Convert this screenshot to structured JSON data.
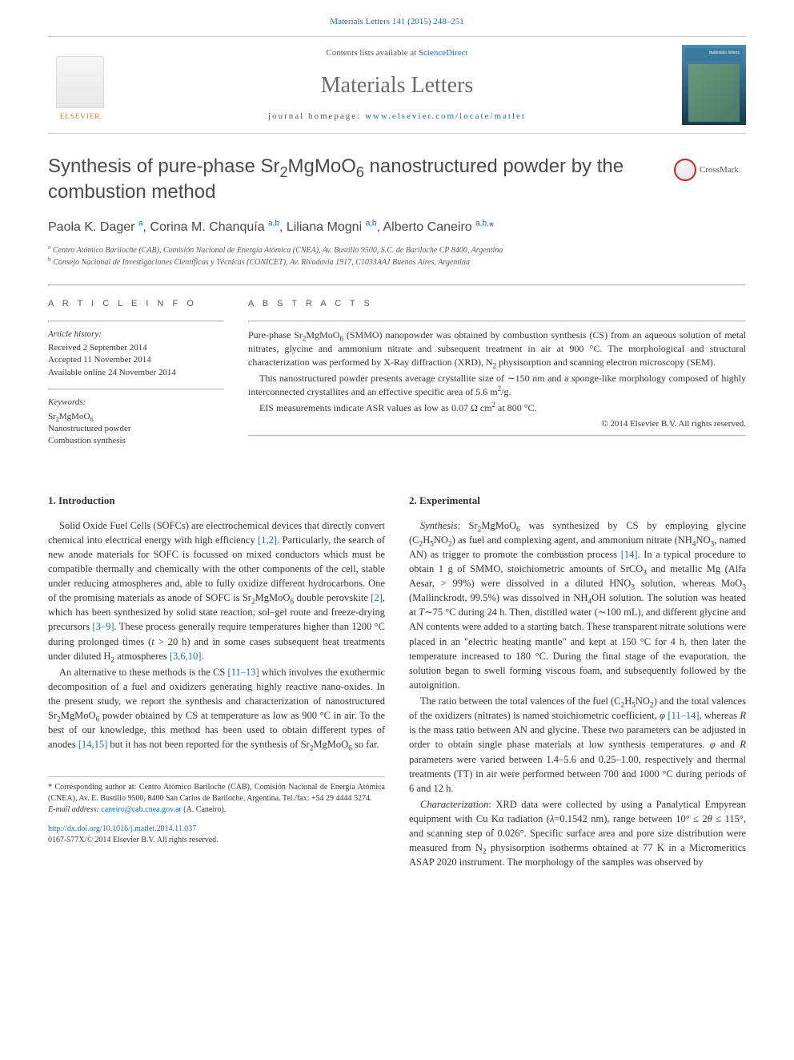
{
  "top_link": {
    "prefix": "",
    "journal_ref": "Materials Letters 141 (2015) 248–251"
  },
  "header": {
    "elsevier_label": "ELSEVIER",
    "contents_prefix": "Contents lists available at ",
    "contents_link": "ScienceDirect",
    "journal_name": "Materials Letters",
    "homepage_prefix": "journal homepage: ",
    "homepage_url": "www.elsevier.com/locate/matlet",
    "cover_label": "materials letters"
  },
  "title_html": "Synthesis of pure-phase Sr<sub>2</sub>MgMoO<sub>6</sub> nanostructured powder by the combustion method",
  "crossmark_label": "CrossMark",
  "authors_html": "Paola K. Dager <sup class='ref-link'>a</sup>, Corina M. Chanquía <sup class='ref-link'>a,b</sup>, Liliana Mogni <sup class='ref-link'>a,b</sup>, Alberto Caneiro <sup class='ref-link'>a,b,</sup><a>*</a>",
  "affiliations": [
    {
      "tag": "a",
      "text": "Centro Atómico Bariloche (CAB), Comisión Nacional de Energía Atómica (CNEA), Av. Bustillo 9500, S.C. de Bariloche CP 8400, Argentina"
    },
    {
      "tag": "b",
      "text": "Consejo Nacional de Investigaciones Científicas y Técnicas (CONICET), Av. Rivadavia 1917, C1033AAJ Buenos Aires, Argentina"
    }
  ],
  "article_info": {
    "heading": "A R T I C L E  I N F O",
    "history_label": "Article history:",
    "history": [
      "Received 2 September 2014",
      "Accepted 11 November 2014",
      "Available online 24 November 2014"
    ],
    "keywords_label": "Keywords:",
    "keywords": [
      "Sr<sub>2</sub>MgMoO<sub>6</sub>",
      "Nanostructured powder",
      "Combustion synthesis"
    ]
  },
  "abstract": {
    "heading": "A B S T R A C T S",
    "paragraphs_html": [
      "Pure-phase Sr<sub>2</sub>MgMoO<sub>6</sub> (SMMO) nanopowder was obtained by combustion synthesis (CS) from an aqueous solution of metal nitrates, glycine and ammonium nitrate and subsequent treatment in air at 900 °C. The morphological and structural characterization was performed by X-Ray diffraction (XRD), N<sub>2</sub> physisorption and scanning electron microscopy (SEM).",
      "This nanostructured powder presents average crystallite size of ∼150 nm and a sponge-like morphology composed of highly interconnected crystallites and an effective specific area of 5.6 m<sup>2</sup>/g.",
      "EIS measurements indicate ASR values as low as 0.07 Ω cm<sup>2</sup> at 800 °C."
    ],
    "copyright": "© 2014 Elsevier B.V. All rights reserved."
  },
  "sections": {
    "intro_head": "1.  Introduction",
    "intro_paras_html": [
      "Solid Oxide Fuel Cells (SOFCs) are electrochemical devices that directly convert chemical into electrical energy with high efficiency <a>[1,2]</a>. Particularly, the search of new anode materials for SOFC is focussed on mixed conductors which must be compatible thermally and chemically with the other components of the cell, stable under reducing atmospheres and, able to fully oxidize different hydrocarbons. One of the promising materials as anode of SOFC is Sr<sub>2</sub>MgMoO<sub>6</sub> double perovskite <a>[2]</a>, which has been synthesized by solid state reaction, sol–gel route and freeze-drying precursors <a>[3–9]</a>. These process generally require temperatures higher than 1200 °C during prolonged times (<span class='ital'>t</span> &gt; 20 h) and in some cases subsequent heat treatments under diluted H<sub>2</sub> atmospheres <a>[3,6,10]</a>.",
      "An alternative to these methods is the CS <a>[11–13]</a> which involves the exothermic decomposition of a fuel and oxidizers generating highly reactive nano-oxides. In the present study, we report the synthesis and characterization of nanostructured Sr<sub>2</sub>MgMoO<sub>6</sub> powder obtained by CS at temperature as low as 900 °C in air. To the best of our knowledge, this method has been used to obtain different types of anodes <a>[14,15]</a> but it has not been reported for the synthesis of Sr<sub>2</sub>MgMoO<sub>6</sub> so far."
    ],
    "exp_head": "2.  Experimental",
    "exp_paras_html": [
      "<span class='ital'>Synthesis</span>: Sr<sub>2</sub>MgMoO<sub>6</sub> was synthesized by CS by employing glycine (C<sub>2</sub>H<sub>5</sub>NO<sub>2</sub>) as fuel and complexing agent, and ammonium nitrate (NH<sub>4</sub>NO<sub>3</sub>, named AN) as trigger to promote the combustion process <a>[14]</a>. In a typical procedure to obtain 1 g of SMMO, stoichiometric amounts of SrCO<sub>3</sub> and metallic Mg (Alfa Aesar, &gt; 99%) were dissolved in a diluted HNO<sub>3</sub> solution, whereas MoO<sub>3</sub> (Mallinckrodt, 99.5%) was dissolved in NH<sub>4</sub>OH solution. The solution was heated at <span class='ital'>T</span>∼75 °C during 24 h. Then, distilled water (∼100 mL), and different glycine and AN contents were added to a starting batch. These transparent nitrate solutions were placed in an \"electric heating mantle\" and kept at 150 °C for 4 h, then later the temperature increased to 180 °C. During the final stage of the evaporation, the solution began to swell forming viscous foam, and subsequently followed by the autoignition.",
      "The ratio between the total valences of the fuel (C<sub>2</sub>H<sub>5</sub>NO<sub>2</sub>) and the total valences of the oxidizers (nitrates) is named stoichiometric coefficient, <span class='ital'>φ</span> <a>[11–14]</a>, whereas <span class='ital'>R</span> is the mass ratio between AN and glycine. These two parameters can be adjusted in order to obtain single phase materials at low synthesis temperatures. <span class='ital'>φ</span> and <span class='ital'>R</span> parameters were varied between 1.4–5.6 and 0.25–1.00, respectively and thermal treatments (TT) in air were performed between 700 and 1000 °C during periods of 6 and 12 h.",
      "<span class='ital'>Characterization</span>: XRD data were collected by using a Panalytical Empyrean equipment with Cu Kα radiation (<span class='ital'>λ</span>=0.1542 nm), range between 10° ≤ 2<span class='ital'>θ</span> ≤ 115°, and scanning step of 0.026°. Specific surface area and pore size distribution were measured from N<sub>2</sub> physisorption isotherms obtained at 77 K in a Micromeritics ASAP 2020 instrument. The morphology of the samples was observed by"
    ]
  },
  "footnotes": {
    "corr_html": "* Corresponding author at: Centro Atómico Bariloche (CAB), Comisión Nacional de Energía Atómica (CNEA), Av. E. Bustillo 9500, 8400 San Carlos de Bariloche, Argentina. Tel./fax: +54 29 4444 5274.",
    "email_label": "E-mail address: ",
    "email": "caneiro@cab.cnea.gov.ar",
    "email_suffix": " (A. Caneiro)."
  },
  "doi": {
    "url": "http://dx.doi.org/10.1016/j.matlet.2014.11.037",
    "issn_line": "0167-577X/© 2014 Elsevier B.V. All rights reserved."
  },
  "colors": {
    "link": "#1a6db5",
    "text": "#333333",
    "heading": "#4a4a4a",
    "rule": "#bbbbbb",
    "elsevier_orange": "#e9711c"
  }
}
